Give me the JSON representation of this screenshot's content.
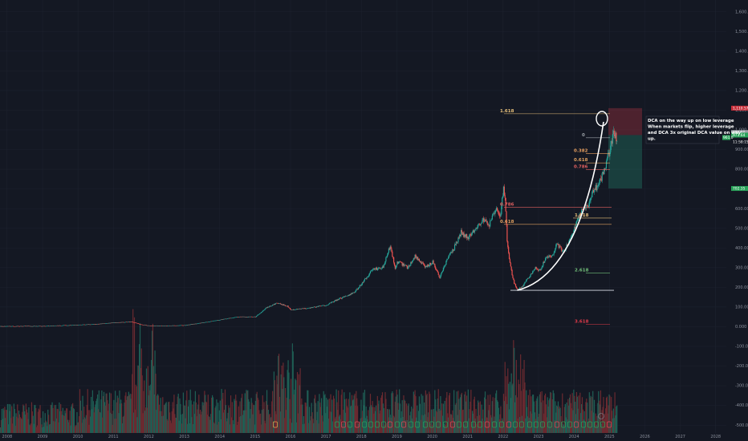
{
  "chart_data": {
    "type": "candlestick",
    "x_tick_labels": [
      "2008",
      "2009",
      "2010",
      "2011",
      "2012",
      "2013",
      "2014",
      "2015",
      "2016",
      "2017",
      "2018",
      "2019",
      "2020",
      "2021",
      "2022",
      "2023",
      "2024",
      "2025",
      "2026",
      "2027",
      "2028"
    ],
    "y_tick_values": [
      -500,
      -400,
      -300,
      -200,
      -100,
      0,
      100,
      200,
      300,
      400,
      500,
      600,
      700,
      800,
      900,
      1000,
      1100,
      1200,
      1300,
      1400,
      1500,
      1600
    ],
    "y_tick_labels": [
      "-500.00",
      "-400.00",
      "-300.00",
      "-200.00",
      "-100.00",
      "0.000",
      "100.00",
      "200.00",
      "300.00",
      "400.00",
      "500.00",
      "600.00",
      "700.00",
      "800.00",
      "900.00",
      "1,000.00",
      "1,100.00",
      "1,200.00",
      "1,300.00",
      "1,400.00",
      "1,500.00",
      "1,600.00"
    ],
    "ylim": [
      -540,
      1660
    ],
    "xlim": [
      2007.8,
      2028.3
    ],
    "grid": true,
    "price_path": [
      [
        2007.8,
        2
      ],
      [
        2008.5,
        3
      ],
      [
        2009.0,
        3
      ],
      [
        2009.5,
        6
      ],
      [
        2010.0,
        9
      ],
      [
        2010.5,
        13
      ],
      [
        2011.0,
        20
      ],
      [
        2011.5,
        25
      ],
      [
        2011.75,
        12
      ],
      [
        2012.0,
        5
      ],
      [
        2012.5,
        5
      ],
      [
        2013.0,
        7
      ],
      [
        2013.5,
        20
      ],
      [
        2014.0,
        35
      ],
      [
        2014.5,
        50
      ],
      [
        2015.0,
        50
      ],
      [
        2015.3,
        95
      ],
      [
        2015.6,
        120
      ],
      [
        2015.9,
        105
      ],
      [
        2016.0,
        85
      ],
      [
        2016.5,
        95
      ],
      [
        2017.0,
        110
      ],
      [
        2017.4,
        145
      ],
      [
        2017.8,
        175
      ],
      [
        2018.0,
        220
      ],
      [
        2018.3,
        290
      ],
      [
        2018.6,
        300
      ],
      [
        2018.8,
        410
      ],
      [
        2018.95,
        290
      ],
      [
        2019.0,
        330
      ],
      [
        2019.3,
        300
      ],
      [
        2019.5,
        360
      ],
      [
        2019.8,
        300
      ],
      [
        2020.0,
        330
      ],
      [
        2020.2,
        250
      ],
      [
        2020.4,
        340
      ],
      [
        2020.6,
        400
      ],
      [
        2020.8,
        480
      ],
      [
        2021.0,
        450
      ],
      [
        2021.2,
        500
      ],
      [
        2021.4,
        540
      ],
      [
        2021.6,
        520
      ],
      [
        2021.8,
        600
      ],
      [
        2021.9,
        550
      ],
      [
        2022.0,
        700
      ],
      [
        2022.05,
        640
      ],
      [
        2022.1,
        430
      ],
      [
        2022.2,
        300
      ],
      [
        2022.3,
        220
      ],
      [
        2022.4,
        185
      ],
      [
        2022.5,
        200
      ],
      [
        2022.7,
        250
      ],
      [
        2022.9,
        300
      ],
      [
        2023.0,
        280
      ],
      [
        2023.2,
        350
      ],
      [
        2023.4,
        360
      ],
      [
        2023.5,
        420
      ],
      [
        2023.7,
        380
      ],
      [
        2023.9,
        450
      ],
      [
        2024.0,
        500
      ],
      [
        2024.2,
        590
      ],
      [
        2024.4,
        620
      ],
      [
        2024.5,
        680
      ],
      [
        2024.7,
        730
      ],
      [
        2024.85,
        800
      ],
      [
        2025.0,
        900
      ],
      [
        2025.1,
        980
      ],
      [
        2025.2,
        950
      ]
    ],
    "fibonacci": [
      {
        "label": "1.618",
        "value": 1082,
        "color": "#e8c07a"
      },
      {
        "label": "0",
        "value": 960,
        "color": "#9aa0a6"
      },
      {
        "label": "0.382",
        "value": 880,
        "color": "#e8a060"
      },
      {
        "label": "0.618",
        "value": 832,
        "color": "#e0a060"
      },
      {
        "label": "0.786",
        "value": 798,
        "color": "#e06060"
      },
      {
        "label": "0.786",
        "value": 606,
        "color": "#e06060"
      },
      {
        "label": "1.618",
        "value": 552,
        "color": "#e8c07a"
      },
      {
        "label": "0.618",
        "value": 520,
        "color": "#e0a060"
      },
      {
        "label": "2.618",
        "value": 272,
        "color": "#72c07a"
      },
      {
        "label": "3.618",
        "value": 12,
        "color": "#e03a4a"
      }
    ],
    "position": {
      "entry": 973.64,
      "stop": 1110.57,
      "target": 702.35
    },
    "price_tags": [
      {
        "value": 1110.57,
        "label": "1,110.57",
        "color": "#c62f3a"
      },
      {
        "value": 986.8,
        "label": "986.80",
        "color": "#9aa0a6"
      },
      {
        "value": 973.64,
        "label": "973.64",
        "color": "#2aa35a"
      },
      {
        "value": 702.35,
        "label": "702.35",
        "color": "#2aa35a"
      }
    ],
    "marker_tag": {
      "label": "961.0",
      "sub": "11:58:15"
    },
    "annotation": {
      "lines": [
        "DCA on the way up on low leverage",
        "When markets flip, higher leverage",
        "and DCA 3x original DCA value on way",
        "up."
      ]
    }
  }
}
